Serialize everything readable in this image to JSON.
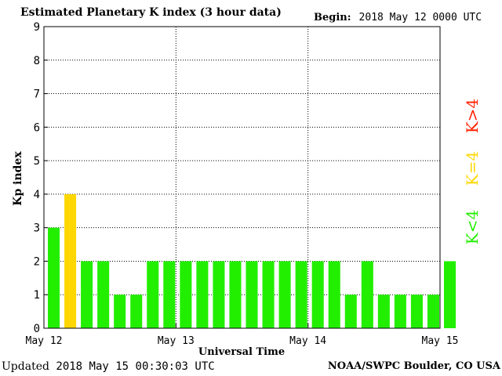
{
  "header": {
    "title": "Estimated Planetary K index (3 hour data)",
    "begin_label": "Begin:",
    "begin_value": "2018 May 12 0000 UTC"
  },
  "footer": {
    "updated_label": "Updated",
    "updated_value": "2018 May 15 00:30:03 UTC",
    "credit": "NOAA/SWPC Boulder, CO USA"
  },
  "colors": {
    "below_storm": "#22ee00",
    "storm_threshold": "#ffd700",
    "above_storm": "#ff2000"
  },
  "chart_data": {
    "type": "bar",
    "title": "Estimated Planetary K index (3 hour data)",
    "xlabel": "Universal Time",
    "ylabel": "Kp index",
    "ylim": [
      0,
      9
    ],
    "yticks": [
      "0",
      "1",
      "2",
      "3",
      "4",
      "5",
      "6",
      "7",
      "8",
      "9"
    ],
    "xticks": [
      "May 12",
      "May 13",
      "May 14",
      "May 15"
    ],
    "grid": true,
    "interval_hours": 3,
    "values": [
      3,
      4,
      2,
      2,
      1,
      1,
      2,
      2,
      2,
      2,
      2,
      2,
      2,
      2,
      2,
      2,
      2,
      2,
      1,
      2,
      1,
      1,
      1,
      1,
      2
    ],
    "legend": [
      {
        "label": "K<4",
        "color": "#22ee00"
      },
      {
        "label": "K=4",
        "color": "#ffd700"
      },
      {
        "label": "K>4",
        "color": "#ff2000"
      }
    ]
  }
}
